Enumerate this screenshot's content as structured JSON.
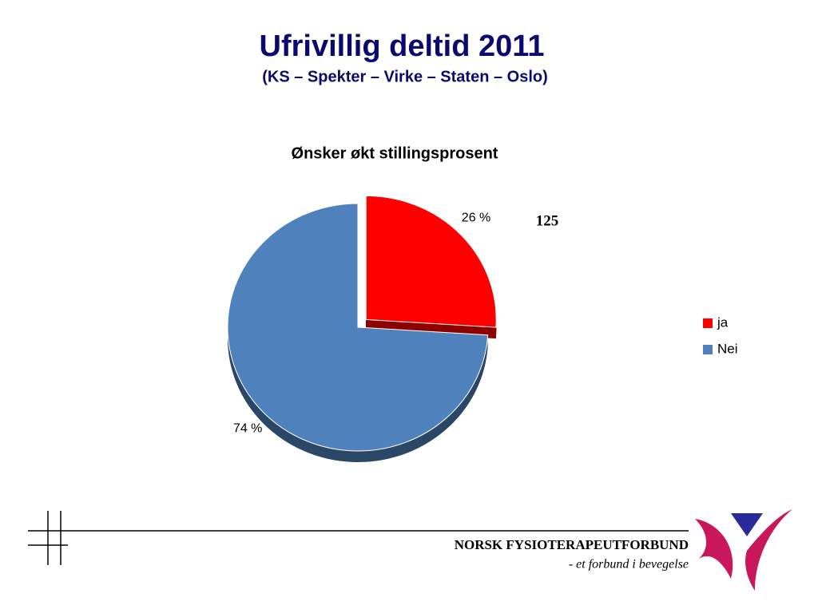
{
  "slide": {
    "title": "Ufrivillig deltid 2011",
    "subtitle": "(KS – Spekter – Virke – Staten – Oslo)",
    "organization": "NORSK FYSIOTERAPEUTFORBUND",
    "tagline": "- et forbund i bevegelse"
  },
  "chart_data": {
    "type": "pie",
    "title": "Ønsker økt stillingsprosent",
    "categories": [
      "ja",
      "Nei"
    ],
    "values": [
      26,
      74
    ],
    "value_labels": [
      "26 %",
      "74 %"
    ],
    "colors": [
      "#ff0000",
      "#4f81bd"
    ],
    "annotation": "125",
    "legend": "right"
  }
}
